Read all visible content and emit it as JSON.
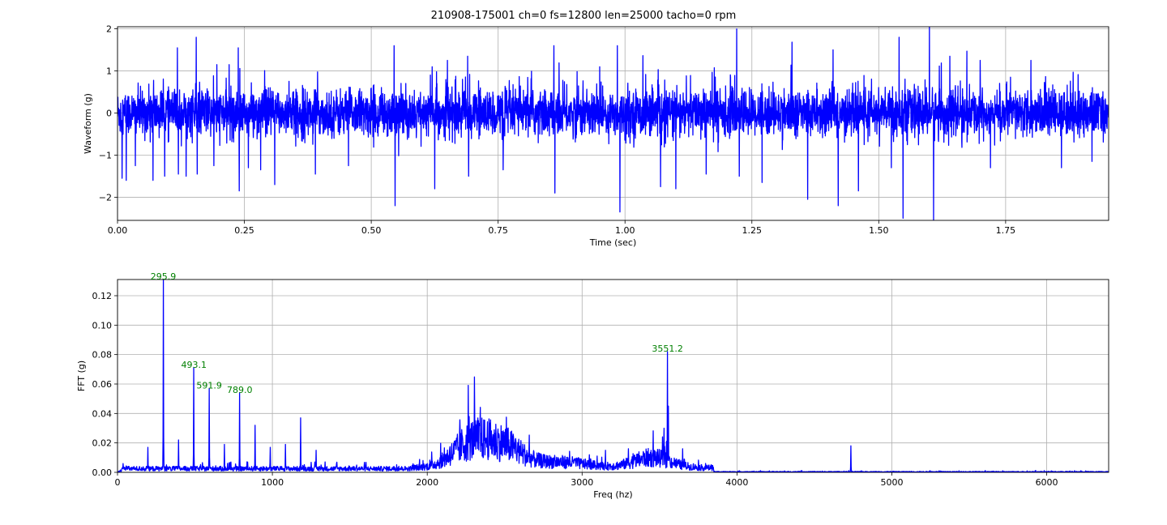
{
  "title": "210908-175001 ch=0 fs=12800 len=25000 tacho=0 rpm",
  "chart_data": [
    {
      "type": "line",
      "name": "waveform",
      "xlabel": "Time (sec)",
      "ylabel": "Waveform (g)",
      "xlim": [
        0,
        1.953
      ],
      "ylim": [
        -2.55,
        2.05
      ],
      "xticks": [
        0.0,
        0.25,
        0.5,
        0.75,
        1.0,
        1.25,
        1.5,
        1.75
      ],
      "xtick_labels": [
        "0.00",
        "0.25",
        "0.50",
        "0.75",
        "1.00",
        "1.25",
        "1.50",
        "1.75"
      ],
      "yticks": [
        -2,
        -1,
        0,
        1,
        2
      ],
      "ytick_labels": [
        "−2",
        "−1",
        "0",
        "1",
        "2"
      ],
      "grid": true,
      "color": "#0000ff",
      "base_amplitude": 0.3,
      "spikes": [
        {
          "t": 0.009,
          "v": -1.55
        },
        {
          "t": 0.017,
          "v": -1.6
        },
        {
          "t": 0.035,
          "v": -1.25
        },
        {
          "t": 0.07,
          "v": -1.6
        },
        {
          "t": 0.093,
          "v": -1.5
        },
        {
          "t": 0.118,
          "v": 1.55
        },
        {
          "t": 0.12,
          "v": -1.45
        },
        {
          "t": 0.135,
          "v": -1.5
        },
        {
          "t": 0.155,
          "v": 1.8
        },
        {
          "t": 0.157,
          "v": -1.45
        },
        {
          "t": 0.19,
          "v": -1.25
        },
        {
          "t": 0.22,
          "v": 1.15
        },
        {
          "t": 0.238,
          "v": 1.55
        },
        {
          "t": 0.24,
          "v": -1.85
        },
        {
          "t": 0.258,
          "v": -1.3
        },
        {
          "t": 0.282,
          "v": -1.35
        },
        {
          "t": 0.31,
          "v": -1.7
        },
        {
          "t": 0.39,
          "v": -1.45
        },
        {
          "t": 0.455,
          "v": -1.25
        },
        {
          "t": 0.545,
          "v": 1.6
        },
        {
          "t": 0.547,
          "v": -2.2
        },
        {
          "t": 0.62,
          "v": 1.1
        },
        {
          "t": 0.625,
          "v": -1.8
        },
        {
          "t": 0.65,
          "v": 1.25
        },
        {
          "t": 0.69,
          "v": 1.35
        },
        {
          "t": 0.692,
          "v": -1.5
        },
        {
          "t": 0.76,
          "v": -1.35
        },
        {
          "t": 0.86,
          "v": 1.6
        },
        {
          "t": 0.862,
          "v": -1.9
        },
        {
          "t": 0.95,
          "v": 1.1
        },
        {
          "t": 0.985,
          "v": 1.6
        },
        {
          "t": 0.99,
          "v": -2.35
        },
        {
          "t": 1.07,
          "v": -1.75
        },
        {
          "t": 1.1,
          "v": -1.8
        },
        {
          "t": 1.16,
          "v": -1.45
        },
        {
          "t": 1.22,
          "v": 2.0
        },
        {
          "t": 1.225,
          "v": -1.5
        },
        {
          "t": 1.27,
          "v": -1.65
        },
        {
          "t": 1.36,
          "v": -2.05
        },
        {
          "t": 1.41,
          "v": 1.5
        },
        {
          "t": 1.42,
          "v": -2.2
        },
        {
          "t": 1.46,
          "v": -1.85
        },
        {
          "t": 1.525,
          "v": -1.3
        },
        {
          "t": 1.54,
          "v": 1.8
        },
        {
          "t": 1.548,
          "v": -2.5
        },
        {
          "t": 1.6,
          "v": 2.05
        },
        {
          "t": 1.608,
          "v": -2.55
        },
        {
          "t": 1.64,
          "v": 1.35
        },
        {
          "t": 1.7,
          "v": 1.25
        },
        {
          "t": 1.72,
          "v": -1.3
        },
        {
          "t": 1.8,
          "v": 1.25
        },
        {
          "t": 1.86,
          "v": -1.3
        },
        {
          "t": 1.92,
          "v": -1.15
        }
      ]
    },
    {
      "type": "line",
      "name": "fft",
      "xlabel": "Freq (hz)",
      "ylabel": "FFT (g)",
      "xlim": [
        0,
        6400
      ],
      "ylim": [
        0,
        0.131
      ],
      "xticks": [
        0,
        1000,
        2000,
        3000,
        4000,
        5000,
        6000
      ],
      "xtick_labels": [
        "0",
        "1000",
        "2000",
        "3000",
        "4000",
        "5000",
        "6000"
      ],
      "yticks": [
        0.0,
        0.02,
        0.04,
        0.06,
        0.08,
        0.1,
        0.12
      ],
      "ytick_labels": [
        "0.00",
        "0.02",
        "0.04",
        "0.06",
        "0.08",
        "0.10",
        "0.12"
      ],
      "grid": true,
      "color": "#0000ff",
      "peaks": [
        {
          "f": 197,
          "v": 0.017
        },
        {
          "f": 295.9,
          "v": 0.131
        },
        {
          "f": 395,
          "v": 0.022
        },
        {
          "f": 493.1,
          "v": 0.071
        },
        {
          "f": 591.9,
          "v": 0.057
        },
        {
          "f": 690,
          "v": 0.019
        },
        {
          "f": 789.0,
          "v": 0.054
        },
        {
          "f": 888,
          "v": 0.032
        },
        {
          "f": 986,
          "v": 0.017
        },
        {
          "f": 1085,
          "v": 0.019
        },
        {
          "f": 1183,
          "v": 0.037
        },
        {
          "f": 1282,
          "v": 0.015
        },
        {
          "f": 3150,
          "v": 0.015
        },
        {
          "f": 3300,
          "v": 0.016
        },
        {
          "f": 3530,
          "v": 0.03
        },
        {
          "f": 3551.2,
          "v": 0.082
        },
        {
          "f": 3558,
          "v": 0.045
        },
        {
          "f": 3650,
          "v": 0.016
        },
        {
          "f": 4735,
          "v": 0.018
        }
      ],
      "humps": [
        {
          "f": 2300,
          "width": 180,
          "v": 0.018
        },
        {
          "f": 2520,
          "width": 150,
          "v": 0.011
        },
        {
          "f": 3450,
          "width": 170,
          "v": 0.007
        },
        {
          "f": 2850,
          "width": 250,
          "v": 0.004
        }
      ],
      "annotations": [
        {
          "f": 295.9,
          "v": 0.131,
          "text": "295.9"
        },
        {
          "f": 493.1,
          "v": 0.071,
          "text": "493.1"
        },
        {
          "f": 591.9,
          "v": 0.057,
          "text": "591.9"
        },
        {
          "f": 789.0,
          "v": 0.054,
          "text": "789.0"
        },
        {
          "f": 3551.2,
          "v": 0.082,
          "text": "3551.2"
        }
      ],
      "annotation_color": "#008000"
    }
  ]
}
